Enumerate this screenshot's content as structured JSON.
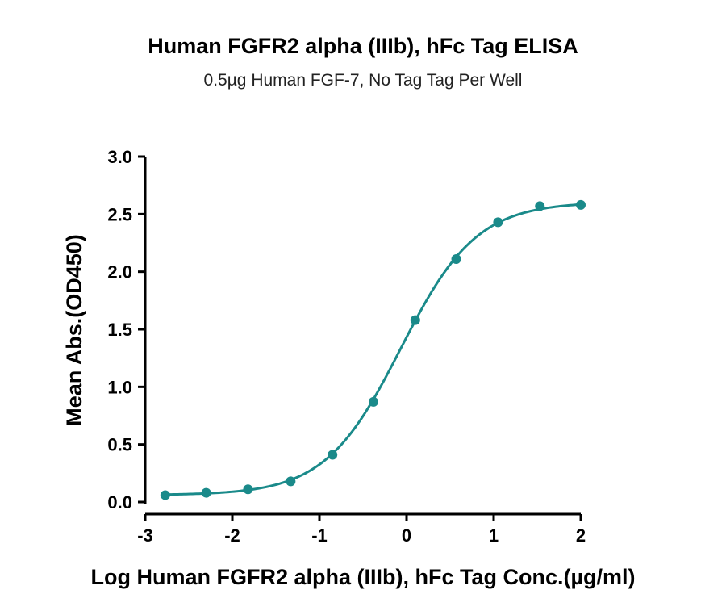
{
  "chart_data": {
    "type": "scatter",
    "title": "Human FGFR2 alpha (IIIb), hFc Tag ELISA",
    "subtitle": "0.5µg Human FGF-7, No Tag Tag Per Well",
    "xlabel": "Log Human FGFR2 alpha (IIIb), hFc Tag Conc.(µg/ml)",
    "ylabel": "Mean Abs.(OD450)",
    "xlim": [
      -3,
      2
    ],
    "ylim": [
      0,
      3
    ],
    "x_ticks": [
      "-3",
      "-2",
      "-1",
      "0",
      "1",
      "2"
    ],
    "y_ticks": [
      "0.0",
      "0.5",
      "1.0",
      "1.5",
      "2.0",
      "2.5",
      "3.0"
    ],
    "grid": false,
    "series": [
      {
        "x": [
          -2.77,
          -2.3,
          -1.82,
          -1.33,
          -0.85,
          -0.38,
          0.1,
          0.57,
          1.05,
          1.53,
          2.0
        ],
        "y": [
          0.06,
          0.08,
          0.11,
          0.18,
          0.41,
          0.87,
          1.58,
          2.11,
          2.43,
          2.57,
          2.58
        ],
        "color": "#1a8a8a",
        "marker": "circle",
        "fit_curve": "four-parameter logistic"
      }
    ]
  }
}
